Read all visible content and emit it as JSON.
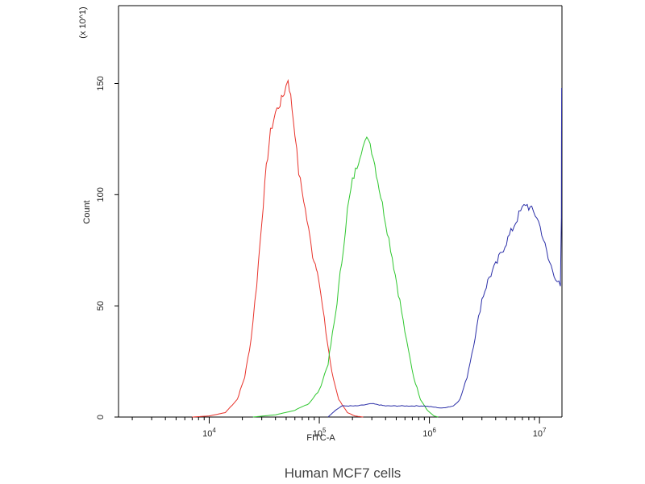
{
  "chart_data": {
    "type": "line",
    "title": "",
    "caption": "Human MCF7 cells",
    "xlabel": "FITC-A",
    "ylabel": "Count",
    "y_multiplier_label": "(x 10^1)",
    "x_scale": "log",
    "xlim": [
      1500,
      16000000
    ],
    "ylim": [
      0,
      185
    ],
    "x_ticks": [
      {
        "value": 10000,
        "base": "10",
        "exp": "4"
      },
      {
        "value": 100000,
        "base": "10",
        "exp": "5"
      },
      {
        "value": 1000000,
        "base": "10",
        "exp": "6"
      },
      {
        "value": 10000000,
        "base": "10",
        "exp": "7"
      }
    ],
    "y_ticks": [
      0,
      50,
      100,
      150
    ],
    "grid": false,
    "legend": "none",
    "series": [
      {
        "color": "#e8322a",
        "points": [
          [
            7000,
            0
          ],
          [
            10000,
            0.5
          ],
          [
            14000,
            2
          ],
          [
            18000,
            8
          ],
          [
            21000,
            18
          ],
          [
            24000,
            35
          ],
          [
            27000,
            60
          ],
          [
            30000,
            88
          ],
          [
            33000,
            112
          ],
          [
            36000,
            128
          ],
          [
            40000,
            137
          ],
          [
            44000,
            141
          ],
          [
            48000,
            146
          ],
          [
            52000,
            152
          ],
          [
            55000,
            144
          ],
          [
            60000,
            128
          ],
          [
            65000,
            110
          ],
          [
            72000,
            98
          ],
          [
            80000,
            84
          ],
          [
            87000,
            73
          ],
          [
            92000,
            69
          ],
          [
            96000,
            67
          ],
          [
            103000,
            55
          ],
          [
            115000,
            38
          ],
          [
            130000,
            20
          ],
          [
            150000,
            8
          ],
          [
            180000,
            2
          ],
          [
            210000,
            0.5
          ],
          [
            250000,
            0
          ]
        ]
      },
      {
        "color": "#2ec72e",
        "points": [
          [
            25000,
            0
          ],
          [
            40000,
            1
          ],
          [
            60000,
            3
          ],
          [
            80000,
            6
          ],
          [
            100000,
            12
          ],
          [
            120000,
            24
          ],
          [
            140000,
            46
          ],
          [
            160000,
            70
          ],
          [
            180000,
            93
          ],
          [
            200000,
            106
          ],
          [
            220000,
            113
          ],
          [
            240000,
            120
          ],
          [
            260000,
            123
          ],
          [
            280000,
            126
          ],
          [
            310000,
            117
          ],
          [
            350000,
            103
          ],
          [
            400000,
            88
          ],
          [
            460000,
            72
          ],
          [
            540000,
            52
          ],
          [
            620000,
            34
          ],
          [
            720000,
            18
          ],
          [
            830000,
            8
          ],
          [
            960000,
            3
          ],
          [
            1100000,
            0.5
          ],
          [
            1200000,
            0
          ]
        ]
      },
      {
        "color": "#2b2fa8",
        "points": [
          [
            120000,
            0
          ],
          [
            140000,
            3
          ],
          [
            160000,
            5
          ],
          [
            220000,
            5
          ],
          [
            300000,
            6
          ],
          [
            400000,
            5
          ],
          [
            600000,
            5
          ],
          [
            900000,
            5
          ],
          [
            1300000,
            4
          ],
          [
            1650000,
            5
          ],
          [
            1900000,
            8
          ],
          [
            2200000,
            18
          ],
          [
            2600000,
            36
          ],
          [
            3000000,
            53
          ],
          [
            3500000,
            63
          ],
          [
            4000000,
            68
          ],
          [
            4700000,
            76
          ],
          [
            5500000,
            83
          ],
          [
            6500000,
            91
          ],
          [
            7500000,
            96
          ],
          [
            8500000,
            93
          ],
          [
            9500000,
            90
          ],
          [
            10500000,
            83
          ],
          [
            12000000,
            71
          ],
          [
            14000000,
            63
          ],
          [
            15500000,
            58
          ],
          [
            15800000,
            90
          ],
          [
            15900000,
            148
          ]
        ]
      }
    ]
  }
}
